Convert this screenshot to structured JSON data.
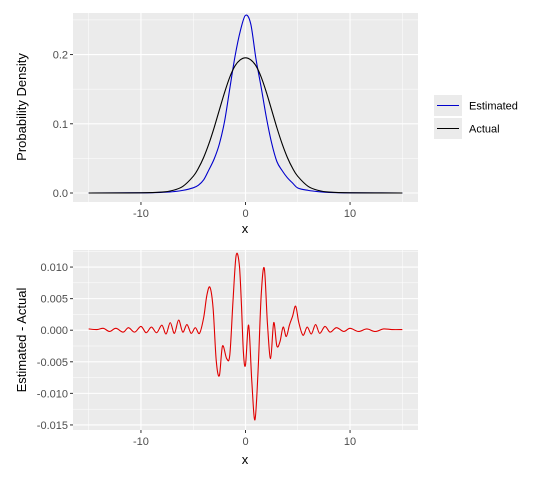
{
  "colors": {
    "panel_background": "#ebebeb",
    "grid": "#ffffff",
    "estimated": "#0000cc",
    "actual": "#000000",
    "difference": "#e00000"
  },
  "chart_data": [
    {
      "type": "line",
      "xlabel": "x",
      "ylabel": "Probability Density",
      "xlim": [
        -16.5,
        16.5
      ],
      "ylim": [
        -0.013,
        0.26
      ],
      "x_ticks": [
        -10,
        0,
        10
      ],
      "x_tick_labels": [
        "-10",
        "0",
        "10"
      ],
      "y_ticks": [
        0.0,
        0.1,
        0.2
      ],
      "y_tick_labels": [
        "0.0",
        "0.1",
        "0.2"
      ],
      "grid": true,
      "legend_position": "right",
      "legend": [
        "Estimated",
        "Actual"
      ],
      "series": [
        {
          "name": "Estimated",
          "color": "#0000cc",
          "x": [
            -15,
            -10,
            -8,
            -7,
            -6,
            -5,
            -4.5,
            -4,
            -3.5,
            -3,
            -2.5,
            -2,
            -1.5,
            -1,
            -0.5,
            0,
            0.5,
            1,
            1.5,
            2,
            2.5,
            3,
            3.5,
            4,
            4.5,
            5,
            6,
            7,
            8,
            10,
            15
          ],
          "y": [
            0,
            0.0003,
            0.0009,
            0.0018,
            0.0038,
            0.0075,
            0.0113,
            0.019,
            0.0335,
            0.0491,
            0.0708,
            0.1037,
            0.1511,
            0.1976,
            0.2338,
            0.2566,
            0.2443,
            0.1938,
            0.1526,
            0.1088,
            0.0722,
            0.0455,
            0.0325,
            0.0221,
            0.0145,
            0.0073,
            0.0038,
            0.0019,
            0.0008,
            0.0002,
            0
          ]
        },
        {
          "name": "Actual",
          "color": "#000000",
          "x": [
            -15,
            -10,
            -8,
            -7,
            -6,
            -5,
            -4.5,
            -4,
            -3.5,
            -3,
            -2.5,
            -2,
            -1.5,
            -1,
            -0.5,
            0,
            0.5,
            1,
            1.5,
            2,
            2.5,
            3,
            3.5,
            4,
            4.5,
            5,
            6,
            7,
            8,
            10,
            15
          ],
          "y": [
            0,
            0.0002,
            0.0013,
            0.0036,
            0.0095,
            0.0241,
            0.0359,
            0.0515,
            0.0712,
            0.0944,
            0.12,
            0.1453,
            0.1675,
            0.1837,
            0.1924,
            0.1953,
            0.1924,
            0.1837,
            0.1675,
            0.1453,
            0.12,
            0.0944,
            0.0712,
            0.0515,
            0.0359,
            0.0241,
            0.0095,
            0.0036,
            0.0013,
            0.0002,
            0
          ]
        }
      ]
    },
    {
      "type": "line",
      "xlabel": "x",
      "ylabel": "Estimated - Actual",
      "xlim": [
        -16.5,
        16.5
      ],
      "ylim": [
        -0.0158,
        0.0127
      ],
      "x_ticks": [
        -10,
        0,
        10
      ],
      "x_tick_labels": [
        "-10",
        "0",
        "10"
      ],
      "y_ticks": [
        -0.015,
        -0.01,
        -0.005,
        0.0,
        0.005,
        0.01
      ],
      "y_tick_labels": [
        "-0.015",
        "-0.010",
        "-0.005",
        "0.000",
        "0.005",
        "0.010"
      ],
      "grid": true,
      "series": [
        {
          "color": "#e00000",
          "x": [
            -15,
            -14.2,
            -13.6,
            -13,
            -12.4,
            -11.7,
            -11.2,
            -10.6,
            -10,
            -9.5,
            -9,
            -8.5,
            -8,
            -7.6,
            -7.2,
            -6.8,
            -6.4,
            -6,
            -5.6,
            -5.2,
            -4.8,
            -4.4,
            -4,
            -3.7,
            -3.4,
            -3.1,
            -2.8,
            -2.5,
            -2.2,
            -1.8,
            -1.5,
            -1.2,
            -0.9,
            -0.6,
            -0.4,
            -0.2,
            0,
            0.3,
            0.6,
            0.9,
            1.2,
            1.5,
            1.8,
            2.1,
            2.4,
            2.7,
            3,
            3.3,
            3.6,
            3.9,
            4.2,
            4.5,
            4.8,
            5.1,
            5.5,
            5.9,
            6.3,
            6.7,
            7.1,
            7.6,
            8.1,
            8.7,
            9.4,
            10,
            10.8,
            11.6,
            12.4,
            13.2,
            14,
            15
          ],
          "y": [
            0.0002,
            0.0001,
            0.0003,
            -0.0002,
            0.0003,
            -0.0003,
            0.0004,
            -0.0003,
            0.0006,
            -0.0004,
            0.0005,
            -0.0004,
            0.0008,
            -0.0006,
            0.0012,
            -0.0005,
            0.0016,
            -0.0003,
            0.0009,
            -0.0005,
            0.0004,
            -0.0005,
            0.002,
            0.0055,
            0.0068,
            0.0035,
            -0.0048,
            -0.0072,
            -0.0025,
            -0.0045,
            -0.0039,
            0.0045,
            0.0118,
            0.0105,
            0.0045,
            -0.0035,
            -0.0055,
            0.0008,
            -0.008,
            -0.0142,
            -0.0065,
            0.0055,
            0.0098,
            0.001,
            -0.0045,
            0.0012,
            -0.0025,
            -0.0018,
            0.0005,
            -0.001,
            0.0008,
            0.0022,
            0.0038,
            0.0012,
            -0.0008,
            0.0005,
            -0.0006,
            0.0009,
            -0.0005,
            0.0006,
            -0.0003,
            0.0004,
            -0.0002,
            0.0003,
            -0.0002,
            0.0002,
            -0.0002,
            0.0002,
            0.0001,
            0.0001
          ]
        }
      ]
    }
  ]
}
